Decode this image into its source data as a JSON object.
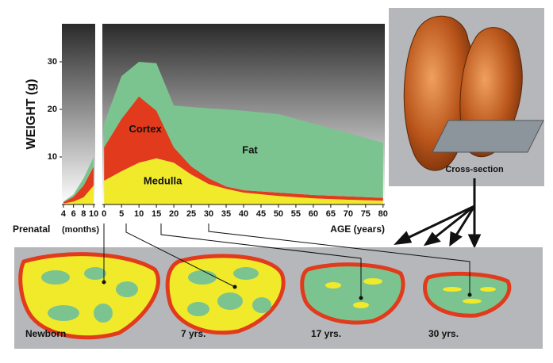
{
  "chart_data": [
    {
      "type": "area",
      "ylabel": "WEIGHT (g)",
      "label": "Prenatal",
      "xlabel": "(months)",
      "x": [
        4,
        6,
        8,
        10
      ],
      "xlim": [
        3.7,
        10.3
      ],
      "xticks": [
        4,
        6,
        8,
        10
      ],
      "ylim": [
        0,
        38
      ],
      "yticks": [
        10,
        20,
        30
      ],
      "series": [
        {
          "color": "#f0ea2a",
          "values": [
            0.2,
            0.6,
            1.5,
            4
          ]
        },
        {
          "color": "#e23a1c",
          "values": [
            0.3,
            1,
            2.5,
            4
          ]
        },
        {
          "color": "#7cc48f",
          "values": [
            0.1,
            0.5,
            1.5,
            2
          ]
        }
      ]
    },
    {
      "type": "area",
      "xlabel": "AGE (years)",
      "x": [
        0,
        5,
        10,
        15,
        20,
        25,
        30,
        35,
        40,
        50,
        60,
        70,
        80
      ],
      "xlim": [
        -0.5,
        80.5
      ],
      "xticks": [
        0,
        5,
        10,
        15,
        20,
        25,
        30,
        35,
        40,
        45,
        50,
        55,
        60,
        65,
        70,
        75,
        80
      ],
      "ylim": [
        0,
        38
      ],
      "series": [
        {
          "name": "Medulla",
          "color": "#f0ea2a",
          "values": [
            5,
            7,
            8.8,
            9.7,
            8.8,
            6.3,
            4.3,
            3.3,
            2.5,
            1.8,
            1.3,
            1,
            0.8
          ]
        },
        {
          "name": "Cortex",
          "color": "#e23a1c",
          "values": [
            7,
            11,
            13.9,
            10,
            3.2,
            1.7,
            1.2,
            0.5,
            0.5,
            0.7,
            0.7,
            0.7,
            0.6
          ]
        },
        {
          "name": "Fat",
          "color": "#7cc48f",
          "values": [
            5,
            9,
            7.3,
            10,
            8.8,
            12.5,
            14.7,
            16.2,
            16.7,
            16.5,
            15,
            13.3,
            11.6
          ]
        }
      ]
    }
  ],
  "illustration": {
    "cross_section_label": "Cross-section",
    "stages": [
      "Newborn",
      "7 yrs.",
      "17 yrs.",
      "30 yrs."
    ]
  }
}
